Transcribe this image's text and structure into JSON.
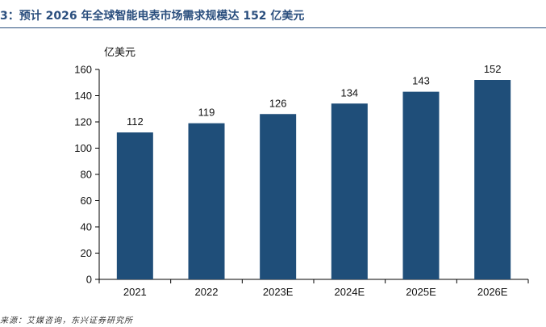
{
  "header": {
    "title": "3：预计 2026 年全球智能电表市场需求规模达 152 亿美元"
  },
  "footer": {
    "source": "来源：艾媒咨询，东兴证券研究所"
  },
  "chart_data": {
    "type": "bar",
    "title": "3：预计 2026 年全球智能电表市场需求规模达 152 亿美元",
    "ylabel": "亿美元",
    "xlabel": "",
    "categories": [
      "2021",
      "2022",
      "2023E",
      "2024E",
      "2025E",
      "2026E"
    ],
    "values": [
      112,
      119,
      126,
      134,
      143,
      152
    ],
    "ylim": [
      0,
      160
    ],
    "yticks": [
      0,
      20,
      40,
      60,
      80,
      100,
      120,
      140,
      160
    ],
    "data_labels": true,
    "grid": false,
    "legend": "none",
    "bar_color": "#1f4e79"
  }
}
